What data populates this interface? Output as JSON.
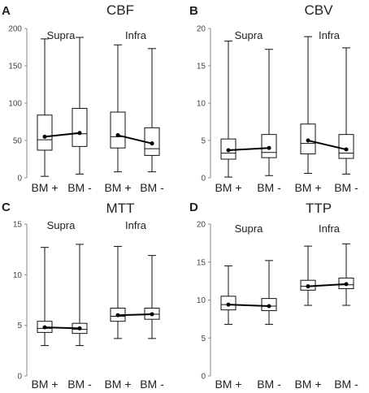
{
  "chart_data": [
    {
      "type": "box",
      "panel_letter": "A",
      "title": "CBF",
      "ylim": [
        0,
        200
      ],
      "yticks": [
        0,
        50,
        100,
        150,
        200
      ],
      "groups": [
        {
          "label": "Supra",
          "categories": [
            "BM +",
            "BM -"
          ],
          "boxes": [
            {
              "category": "BM +",
              "min": 2,
              "q1": 37,
              "median": 51,
              "q3": 84,
              "max": 186,
              "mean": 55
            },
            {
              "category": "BM -",
              "min": 5,
              "q1": 42,
              "median": 59,
              "q3": 93,
              "max": 188,
              "mean": 60
            }
          ]
        },
        {
          "label": "Infra",
          "categories": [
            "BM +",
            "BM -"
          ],
          "boxes": [
            {
              "category": "BM +",
              "min": 8,
              "q1": 40,
              "median": 55,
              "q3": 88,
              "max": 178,
              "mean": 57
            },
            {
              "category": "BM -",
              "min": 8,
              "q1": 30,
              "median": 39,
              "q3": 67,
              "max": 173,
              "mean": 46
            }
          ]
        }
      ]
    },
    {
      "type": "box",
      "panel_letter": "B",
      "title": "CBV",
      "ylim": [
        0,
        20
      ],
      "yticks": [
        0,
        5,
        10,
        15,
        20
      ],
      "groups": [
        {
          "label": "Supra",
          "categories": [
            "BM +",
            "BM -"
          ],
          "boxes": [
            {
              "category": "BM +",
              "min": 0.1,
              "q1": 2.5,
              "median": 3.3,
              "q3": 5.2,
              "max": 18.3,
              "mean": 3.7
            },
            {
              "category": "BM -",
              "min": 0.3,
              "q1": 2.7,
              "median": 3.4,
              "q3": 5.8,
              "max": 17.2,
              "mean": 4.0
            }
          ]
        },
        {
          "label": "Infra",
          "categories": [
            "BM +",
            "BM -"
          ],
          "boxes": [
            {
              "category": "BM +",
              "min": 0.6,
              "q1": 3.2,
              "median": 4.6,
              "q3": 7.2,
              "max": 18.9,
              "mean": 5.0
            },
            {
              "category": "BM -",
              "min": 0.5,
              "q1": 2.6,
              "median": 3.3,
              "q3": 5.8,
              "max": 17.4,
              "mean": 3.8
            }
          ]
        }
      ]
    },
    {
      "type": "box",
      "panel_letter": "C",
      "title": "MTT",
      "ylim": [
        0,
        15
      ],
      "yticks": [
        0,
        5,
        10,
        15
      ],
      "groups": [
        {
          "label": "Supra",
          "categories": [
            "BM +",
            "BM -"
          ],
          "boxes": [
            {
              "category": "BM +",
              "min": 3.0,
              "q1": 4.3,
              "median": 4.7,
              "q3": 5.4,
              "max": 12.7,
              "mean": 4.8
            },
            {
              "category": "BM -",
              "min": 3.0,
              "q1": 4.2,
              "median": 4.6,
              "q3": 5.2,
              "max": 13.0,
              "mean": 4.7
            }
          ]
        },
        {
          "label": "Infra",
          "categories": [
            "BM +",
            "BM -"
          ],
          "boxes": [
            {
              "category": "BM +",
              "min": 3.7,
              "q1": 5.4,
              "median": 5.9,
              "q3": 6.7,
              "max": 12.8,
              "mean": 6.0
            },
            {
              "category": "BM -",
              "min": 3.7,
              "q1": 5.6,
              "median": 6.1,
              "q3": 6.7,
              "max": 11.9,
              "mean": 6.1
            }
          ]
        }
      ]
    },
    {
      "type": "box",
      "panel_letter": "D",
      "title": "TTP",
      "ylim": [
        0,
        20
      ],
      "yticks": [
        0,
        5,
        10,
        15,
        20
      ],
      "groups": [
        {
          "label": "Supra",
          "categories": [
            "BM +",
            "BM -"
          ],
          "boxes": [
            {
              "category": "BM +",
              "min": 6.8,
              "q1": 8.7,
              "median": 9.4,
              "q3": 10.5,
              "max": 14.5,
              "mean": 9.4
            },
            {
              "category": "BM -",
              "min": 6.8,
              "q1": 8.6,
              "median": 9.2,
              "q3": 10.2,
              "max": 15.2,
              "mean": 9.2
            }
          ]
        },
        {
          "label": "Infra",
          "categories": [
            "BM +",
            "BM -"
          ],
          "boxes": [
            {
              "category": "BM +",
              "min": 9.3,
              "q1": 11.3,
              "median": 11.8,
              "q3": 12.6,
              "max": 17.1,
              "mean": 11.8
            },
            {
              "category": "BM -",
              "min": 9.3,
              "q1": 11.5,
              "median": 12.0,
              "q3": 12.9,
              "max": 17.4,
              "mean": 12.1
            }
          ]
        }
      ]
    }
  ]
}
